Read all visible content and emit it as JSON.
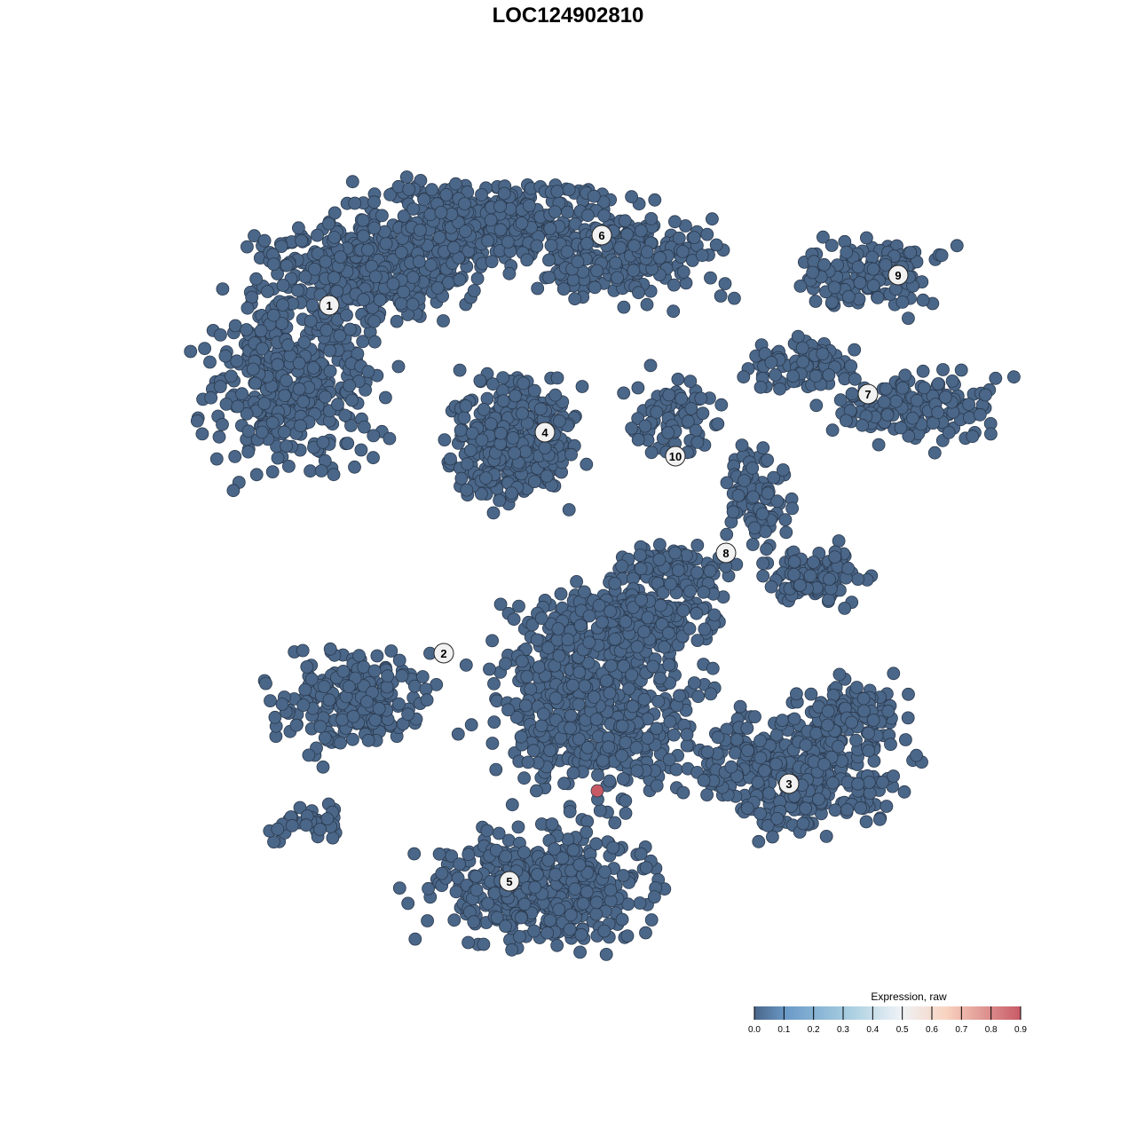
{
  "chart_data": {
    "type": "scatter",
    "title": "LOC124902810",
    "xlabel": "",
    "ylabel": "",
    "grid": false,
    "cluster_labels": [
      "1",
      "2",
      "3",
      "4",
      "5",
      "6",
      "7",
      "8",
      "9",
      "10"
    ],
    "point_color_low": "#4a6688",
    "point_color_high": "#c85a66",
    "highlighted_points": [
      {
        "cluster": "5",
        "expression": 0.9
      }
    ],
    "other_points_expression": 0.0,
    "colorbar": {
      "title": "Expression, raw",
      "ticks": [
        "0.0",
        "0.1",
        "0.2",
        "0.3",
        "0.4",
        "0.5",
        "0.6",
        "0.7",
        "0.8",
        "0.9"
      ],
      "range": [
        0,
        0.9
      ],
      "colors": [
        "#4a6688",
        "#6a9ac8",
        "#a6cde0",
        "#eef2f6",
        "#f8d3c0",
        "#c85a66"
      ],
      "placement": "bottom-right"
    }
  }
}
